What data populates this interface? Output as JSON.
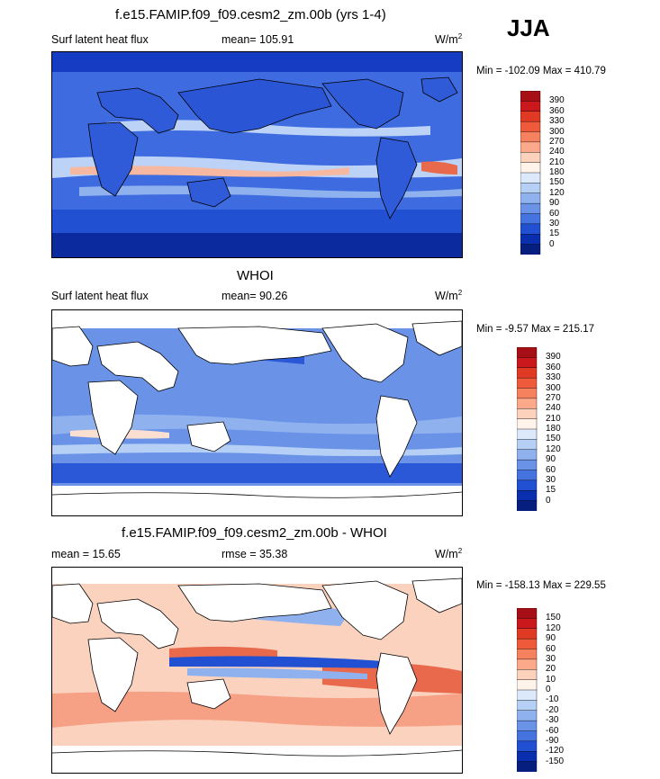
{
  "season": "JJA",
  "panels": [
    {
      "title": "f.e15.FAMIP.f09_f09.cesm2_zm.00b (yrs 1-4)",
      "left_label": "Surf latent heat flux",
      "center_label": "mean= 105.91",
      "units": "W/m",
      "units_sup": "2",
      "minmax": "Min = -102.09 Max = 410.79",
      "colorbar_labels": [
        "390",
        "360",
        "330",
        "300",
        "270",
        "240",
        "210",
        "180",
        "150",
        "120",
        "90",
        "60",
        "30",
        "15",
        "0"
      ],
      "colorbar_colors": [
        "#a50f15",
        "#cb181d",
        "#e03a24",
        "#ef5a3a",
        "#f6815e",
        "#fba98a",
        "#fdd2bc",
        "#fff3ea",
        "#dce9fb",
        "#b5cff5",
        "#8fb2ef",
        "#6a93e8",
        "#4574e0",
        "#2250d3",
        "#0a2fae",
        "#061e7d"
      ],
      "map_colors": {
        "ocean": "#3f6be0",
        "ocean_deep": "#163cc4",
        "warm": "#f6b8a0",
        "hot": "#e9694c",
        "pale": "#bcd2f6",
        "land": "#2f5bd8",
        "polar": "#0a2a9e"
      }
    },
    {
      "title": "WHOI",
      "left_label": "Surf latent heat flux",
      "center_label": "mean=  90.26",
      "units": "W/m",
      "units_sup": "2",
      "minmax": "Min =  -9.57 Max = 215.17",
      "colorbar_labels": [
        "390",
        "360",
        "330",
        "300",
        "270",
        "240",
        "210",
        "180",
        "150",
        "120",
        "90",
        "60",
        "30",
        "15",
        "0"
      ],
      "colorbar_colors": [
        "#a50f15",
        "#cb181d",
        "#e03a24",
        "#ef5a3a",
        "#f6815e",
        "#fba98a",
        "#fdd2bc",
        "#fff3ea",
        "#dce9fb",
        "#b5cff5",
        "#8fb2ef",
        "#6a93e8",
        "#4574e0",
        "#2250d3",
        "#0a2fae",
        "#061e7d"
      ],
      "map_colors": {
        "ocean": "#6a93e8",
        "ocean_deep": "#2a58d6",
        "warm": "#fbe0d2",
        "pale": "#b5cff5",
        "land": "#ffffff",
        "polar": "#ffffff"
      }
    },
    {
      "title": "f.e15.FAMIP.f09_f09.cesm2_zm.00b - WHOI",
      "left_label": "mean =  15.65",
      "center_label": "rmse =  35.38",
      "units": "W/m",
      "units_sup": "2",
      "minmax": "Min = -158.13 Max = 229.55",
      "colorbar_labels": [
        "150",
        "120",
        "90",
        "60",
        "30",
        "20",
        "10",
        "0",
        "-10",
        "-20",
        "-30",
        "-60",
        "-90",
        "-120",
        "-150"
      ],
      "colorbar_colors": [
        "#a50f15",
        "#cb181d",
        "#e03a24",
        "#ef5a3a",
        "#f6815e",
        "#fba98a",
        "#fdd2bc",
        "#fff3ea",
        "#dce9fb",
        "#b5cff5",
        "#8fb2ef",
        "#6a93e8",
        "#4574e0",
        "#2250d3",
        "#0a2fae",
        "#061e7d"
      ],
      "map_colors": {
        "ocean": "#f6a085",
        "ocean_deep": "#e9694c",
        "warm": "#fbd2be",
        "cool": "#8fb2ef",
        "cold": "#2250d3",
        "land": "#ffffff",
        "polar": "#ffffff"
      }
    }
  ]
}
